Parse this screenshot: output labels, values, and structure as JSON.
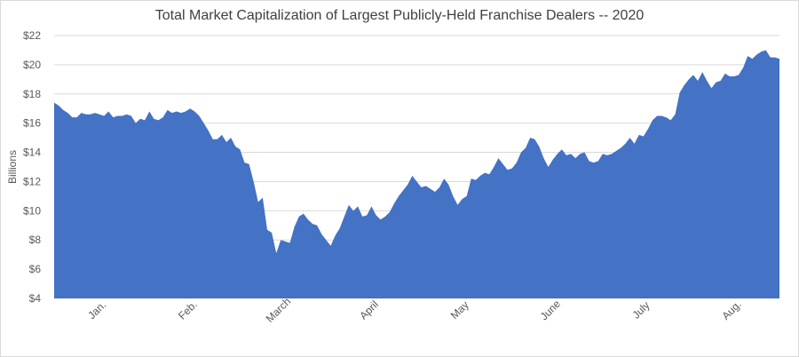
{
  "chart_data": {
    "type": "area",
    "title": "Total Market Capitalization of Largest Publicly-Held  Franchise Dealers -- 2020",
    "ylabel": "Billions",
    "xlabel": "",
    "ylim": [
      4,
      22
    ],
    "y_ticks": [
      "$4",
      "$6",
      "$8",
      "$10",
      "$12",
      "$14",
      "$16",
      "$18",
      "$20",
      "$22"
    ],
    "x_tick_labels": [
      "Jan.",
      "Feb.",
      "March",
      "April",
      "May",
      "June",
      "July",
      "Aug."
    ],
    "grid": true,
    "color": "#4472c4",
    "series": [
      {
        "values": [
          17.4,
          17.2,
          16.9,
          16.7,
          16.4,
          16.4,
          16.7,
          16.6,
          16.6,
          16.7,
          16.6,
          16.5,
          16.8,
          16.4,
          16.5,
          16.5,
          16.6,
          16.5,
          16.0,
          16.3,
          16.2,
          16.8,
          16.3,
          16.2,
          16.4,
          16.9,
          16.7,
          16.8,
          16.7,
          16.8,
          17.0,
          16.8,
          16.5,
          16.0,
          15.5,
          14.9,
          14.9,
          15.2,
          14.7,
          15.0,
          14.4,
          14.2,
          13.3,
          13.2,
          12.0,
          10.6,
          10.9,
          8.7,
          8.5,
          7.1,
          8.0,
          7.9,
          7.8,
          8.9,
          9.6,
          9.8,
          9.4,
          9.1,
          9.0,
          8.4,
          8.0,
          7.6,
          8.3,
          8.8,
          9.6,
          10.4,
          10.0,
          10.3,
          9.6,
          9.7,
          10.3,
          9.7,
          9.4,
          9.6,
          9.9,
          10.5,
          11.0,
          11.4,
          11.8,
          12.4,
          12.0,
          11.6,
          11.7,
          11.5,
          11.3,
          11.6,
          12.2,
          11.8,
          11.0,
          10.4,
          10.8,
          11.0,
          12.2,
          12.1,
          12.4,
          12.6,
          12.5,
          13.0,
          13.6,
          13.2,
          12.8,
          12.9,
          13.3,
          14.0,
          14.3,
          15.0,
          14.9,
          14.4,
          13.6,
          13.0,
          13.5,
          13.9,
          14.2,
          13.8,
          13.9,
          13.6,
          13.9,
          14.0,
          13.4,
          13.3,
          13.4,
          13.9,
          13.8,
          13.9,
          14.1,
          14.3,
          14.6,
          15.0,
          14.6,
          15.2,
          15.1,
          15.6,
          16.2,
          16.5,
          16.5,
          16.4,
          16.2,
          16.6,
          18.1,
          18.6,
          19.0,
          19.3,
          18.9,
          19.5,
          18.9,
          18.4,
          18.8,
          18.9,
          19.4,
          19.2,
          19.2,
          19.3,
          19.8,
          20.6,
          20.4,
          20.7,
          20.9,
          21.0,
          20.5,
          20.5,
          20.4
        ]
      }
    ]
  }
}
